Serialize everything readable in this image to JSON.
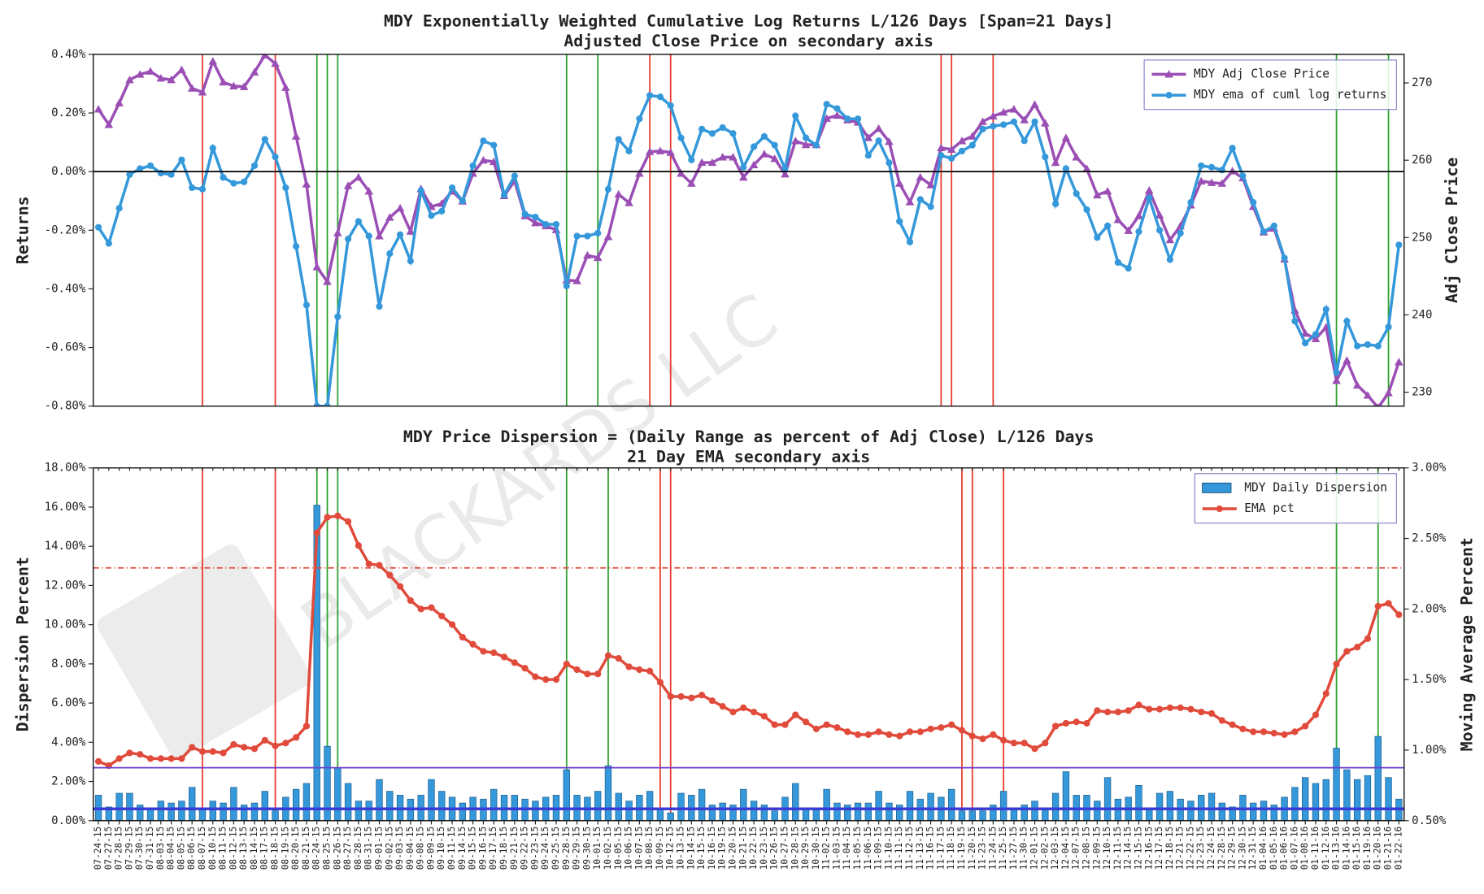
{
  "watermark": "BLACKARDS LLC",
  "chart_data": [
    {
      "type": "line",
      "title": "MDY Exponentially Weighted Cumulative Log Returns L/126 Days [Span=21 Days]",
      "subtitle": "Adjusted Close Price on secondary axis",
      "ylabel": "Returns",
      "y2label": "Adj Close Price",
      "ylim": [
        -0.8,
        0.4
      ],
      "yticks": [
        {
          "value": -0.8,
          "label": "-0.80%"
        },
        {
          "value": -0.6,
          "label": "-0.60%"
        },
        {
          "value": -0.4,
          "label": "-0.40%"
        },
        {
          "value": -0.2,
          "label": "-0.20%"
        },
        {
          "value": 0,
          "label": "0.00%"
        },
        {
          "value": 0.2,
          "label": "0.20%"
        },
        {
          "value": 0.4,
          "label": "0.40%"
        }
      ],
      "y2lim": [
        228.2,
        273.7
      ],
      "y2ticks": [
        230,
        240,
        250,
        260,
        270
      ],
      "legend": "upper right",
      "series": [
        {
          "name": "MDY Adj Close Price",
          "color": "#9b4fb5",
          "axis": "y2",
          "marker": "triangle",
          "values": [
            266.6,
            264.6,
            267.4,
            270.4,
            271.1,
            271.5,
            270.6,
            270.4,
            271.7,
            269.3,
            268.8,
            272.8,
            270.1,
            269.6,
            269.5,
            271.4,
            273.6,
            272.5,
            269.4,
            263.1,
            256.9,
            246.2,
            244.3,
            250.6,
            256.7,
            257.8,
            256.0,
            250.2,
            252.6,
            253.8,
            250.8,
            256.3,
            254.0,
            254.4,
            256.0,
            254.7,
            258.3,
            260.0,
            259.8,
            255.4,
            257.3,
            252.8,
            251.9,
            251.5,
            251.0,
            244.5,
            244.4,
            247.7,
            247.4,
            250.1,
            255.6,
            254.5,
            258.3,
            261.1,
            261.2,
            261.0,
            258.3,
            257.0,
            259.7,
            259.7,
            260.4,
            260.4,
            257.8,
            259.4,
            260.8,
            260.2,
            258.2,
            262.5,
            262.0,
            262.0,
            265.4,
            265.8,
            265.2,
            264.9,
            262.9,
            264.1,
            262.4,
            257.0,
            254.6,
            257.8,
            256.8,
            261.6,
            261.4,
            262.5,
            263.1,
            265.0,
            265.7,
            266.2,
            266.6,
            265.2,
            267.2,
            264.8,
            259.7,
            262.9,
            260.4,
            258.9,
            255.5,
            256.0,
            252.3,
            250.9,
            252.8,
            256.1,
            252.9,
            249.7,
            251.5,
            254.2,
            257.3,
            257.1,
            257.0,
            258.6,
            257.7,
            254.0,
            250.7,
            251.2,
            247.2,
            240.6,
            237.6,
            236.9,
            238.4,
            231.5,
            234.1,
            230.9,
            229.6,
            228.0,
            229.9,
            233.9
          ]
        },
        {
          "name": "MDY ema of cuml log returns",
          "color": "#3498db",
          "marker": "circle",
          "values": [
            -0.19,
            -0.245,
            -0.125,
            -0.01,
            0.01,
            0.02,
            -0.005,
            -0.01,
            0.04,
            -0.055,
            -0.06,
            0.08,
            -0.02,
            -0.04,
            -0.035,
            0.02,
            0.11,
            0.05,
            -0.055,
            -0.255,
            -0.455,
            -0.8,
            -0.8,
            -0.495,
            -0.23,
            -0.17,
            -0.22,
            -0.46,
            -0.28,
            -0.215,
            -0.305,
            -0.065,
            -0.15,
            -0.135,
            -0.055,
            -0.1,
            0.02,
            0.105,
            0.09,
            -0.08,
            -0.015,
            -0.145,
            -0.155,
            -0.18,
            -0.18,
            -0.39,
            -0.22,
            -0.22,
            -0.21,
            -0.06,
            0.11,
            0.07,
            0.18,
            0.26,
            0.255,
            0.225,
            0.115,
            0.04,
            0.145,
            0.13,
            0.15,
            0.13,
            0.015,
            0.085,
            0.12,
            0.09,
            0.01,
            0.19,
            0.115,
            0.09,
            0.23,
            0.215,
            0.18,
            0.18,
            0.055,
            0.105,
            0.03,
            -0.17,
            -0.24,
            -0.095,
            -0.12,
            0.055,
            0.045,
            0.07,
            0.09,
            0.145,
            0.155,
            0.16,
            0.17,
            0.105,
            0.17,
            0.05,
            -0.11,
            0.01,
            -0.075,
            -0.13,
            -0.225,
            -0.185,
            -0.31,
            -0.33,
            -0.205,
            -0.09,
            -0.2,
            -0.3,
            -0.21,
            -0.105,
            0.02,
            0.015,
            0.005,
            0.08,
            -0.015,
            -0.105,
            -0.205,
            -0.185,
            -0.295,
            -0.51,
            -0.585,
            -0.555,
            -0.47,
            -0.685,
            -0.51,
            -0.595,
            -0.59,
            -0.595,
            -0.53,
            -0.25
          ]
        }
      ],
      "hlines": [
        {
          "value": 0,
          "color": "#000000"
        }
      ],
      "vlines": [
        {
          "x": "08-07-15",
          "color": "#e8392b"
        },
        {
          "x": "08-18-15",
          "color": "#e8392b"
        },
        {
          "x": "10-08-15",
          "color": "#e8392b"
        },
        {
          "x": "10-12-15",
          "color": "#e8392b"
        },
        {
          "x": "11-17-15",
          "color": "#e8392b"
        },
        {
          "x": "11-18-15",
          "color": "#e8392b"
        },
        {
          "x": "11-24-15",
          "color": "#e8392b"
        },
        {
          "x": "08-24-15",
          "color": "#2ca02c"
        },
        {
          "x": "08-25-15",
          "color": "#2ca02c"
        },
        {
          "x": "08-26-15",
          "color": "#2ca02c"
        },
        {
          "x": "09-28-15",
          "color": "#2ca02c"
        },
        {
          "x": "10-01-15",
          "color": "#2ca02c"
        },
        {
          "x": "01-13-16",
          "color": "#2ca02c"
        },
        {
          "x": "01-21-16",
          "color": "#2ca02c"
        }
      ]
    },
    {
      "type": "bar",
      "title": "MDY Price Dispersion = (Daily Range as percent of Adj Close) L/126 Days",
      "subtitle": "21 Day EMA secondary axis",
      "ylabel": "Dispersion Percent",
      "y2label": "Moving Average Percent",
      "categories": [
        "07-24-15",
        "07-27-15",
        "07-28-15",
        "07-29-15",
        "07-30-15",
        "07-31-15",
        "08-03-15",
        "08-04-15",
        "08-05-15",
        "08-06-15",
        "08-07-15",
        "08-10-15",
        "08-11-15",
        "08-12-15",
        "08-13-15",
        "08-14-15",
        "08-17-15",
        "08-18-15",
        "08-19-15",
        "08-20-15",
        "08-21-15",
        "08-24-15",
        "08-25-15",
        "08-26-15",
        "08-27-15",
        "08-28-15",
        "08-31-15",
        "09-01-15",
        "09-02-15",
        "09-03-15",
        "09-04-15",
        "09-08-15",
        "09-09-15",
        "09-10-15",
        "09-11-15",
        "09-14-15",
        "09-15-15",
        "09-16-15",
        "09-17-15",
        "09-18-15",
        "09-21-15",
        "09-22-15",
        "09-23-15",
        "09-24-15",
        "09-25-15",
        "09-28-15",
        "09-29-15",
        "09-30-15",
        "10-01-15",
        "10-02-15",
        "10-05-15",
        "10-06-15",
        "10-07-15",
        "10-08-15",
        "10-09-15",
        "10-12-15",
        "10-13-15",
        "10-14-15",
        "10-15-15",
        "10-16-15",
        "10-19-15",
        "10-20-15",
        "10-21-15",
        "10-22-15",
        "10-23-15",
        "10-26-15",
        "10-27-15",
        "10-28-15",
        "10-29-15",
        "10-30-15",
        "11-02-15",
        "11-03-15",
        "11-04-15",
        "11-05-15",
        "11-06-15",
        "11-09-15",
        "11-10-15",
        "11-11-15",
        "11-12-15",
        "11-13-15",
        "11-16-15",
        "11-17-15",
        "11-18-15",
        "11-19-15",
        "11-20-15",
        "11-23-15",
        "11-24-15",
        "11-25-15",
        "11-27-15",
        "11-30-15",
        "12-01-15",
        "12-02-15",
        "12-03-15",
        "12-04-15",
        "12-07-15",
        "12-08-15",
        "12-09-15",
        "12-10-15",
        "12-11-15",
        "12-14-15",
        "12-15-15",
        "12-16-15",
        "12-17-15",
        "12-18-15",
        "12-21-15",
        "12-22-15",
        "12-23-15",
        "12-24-15",
        "12-28-15",
        "12-29-15",
        "12-30-15",
        "12-31-15",
        "01-04-16",
        "01-05-16",
        "01-06-16",
        "01-07-16",
        "01-08-16",
        "01-11-16",
        "01-12-16",
        "01-13-16",
        "01-14-16",
        "01-15-16",
        "01-19-16",
        "01-20-16",
        "01-21-16",
        "01-22-16"
      ],
      "ylim": [
        0,
        18
      ],
      "yticks": [
        {
          "value": 0,
          "label": "0.00%"
        },
        {
          "value": 2,
          "label": "2.00%"
        },
        {
          "value": 4,
          "label": "4.00%"
        },
        {
          "value": 6,
          "label": "6.00%"
        },
        {
          "value": 8,
          "label": "8.00%"
        },
        {
          "value": 10,
          "label": "10.00%"
        },
        {
          "value": 12,
          "label": "12.00%"
        },
        {
          "value": 14,
          "label": "14.00%"
        },
        {
          "value": 16,
          "label": "16.00%"
        },
        {
          "value": 18,
          "label": "18.00%"
        }
      ],
      "y2lim": [
        0.5,
        3.0
      ],
      "y2ticks": [
        {
          "value": 0.5,
          "label": "0.50%"
        },
        {
          "value": 1.0,
          "label": "1.00%"
        },
        {
          "value": 1.5,
          "label": "1.50%"
        },
        {
          "value": 2.0,
          "label": "2.00%"
        },
        {
          "value": 2.5,
          "label": "2.50%"
        },
        {
          "value": 3.0,
          "label": "3.00%"
        }
      ],
      "legend": "upper right",
      "series": [
        {
          "name": "MDY Daily Dispersion",
          "color": "#3498db",
          "type": "bar",
          "values": [
            1.3,
            0.7,
            1.4,
            1.4,
            0.8,
            0.6,
            1.0,
            0.9,
            1.0,
            1.7,
            0.6,
            1.0,
            0.9,
            1.7,
            0.8,
            0.9,
            1.5,
            0.5,
            1.2,
            1.6,
            1.9,
            16.1,
            3.8,
            2.7,
            1.9,
            1.0,
            1.0,
            2.1,
            1.5,
            1.3,
            1.1,
            1.3,
            2.1,
            1.5,
            1.2,
            0.9,
            1.2,
            1.1,
            1.6,
            1.3,
            1.3,
            1.1,
            1.0,
            1.2,
            1.3,
            2.6,
            1.3,
            1.2,
            1.5,
            2.8,
            1.4,
            1.0,
            1.3,
            1.5,
            0.6,
            0.4,
            1.4,
            1.3,
            1.6,
            0.8,
            0.9,
            0.8,
            1.6,
            1.0,
            0.8,
            0.5,
            1.2,
            1.9,
            0.6,
            0.6,
            1.6,
            0.9,
            0.8,
            0.9,
            0.9,
            1.5,
            0.9,
            0.8,
            1.5,
            1.1,
            1.4,
            1.2,
            1.6,
            0.5,
            0.5,
            0.5,
            0.8,
            1.5,
            0.6,
            0.8,
            1.0,
            0.6,
            1.4,
            2.5,
            1.3,
            1.3,
            1.0,
            2.2,
            1.1,
            1.2,
            1.8,
            0.6,
            1.4,
            1.5,
            1.1,
            1.0,
            1.3,
            1.4,
            0.9,
            0.7,
            1.3,
            0.9,
            1.0,
            0.8,
            1.2,
            1.7,
            2.2,
            1.9,
            2.1,
            3.7,
            2.6,
            2.1,
            2.3,
            4.3,
            2.2,
            1.1
          ]
        },
        {
          "name": "EMA pct",
          "color": "#e04b3c",
          "type": "line",
          "axis": "y2",
          "marker": "circle",
          "values": [
            0.92,
            0.89,
            0.94,
            0.98,
            0.97,
            0.94,
            0.94,
            0.94,
            0.94,
            1.02,
            0.99,
            0.99,
            0.98,
            1.04,
            1.02,
            1.01,
            1.07,
            1.03,
            1.05,
            1.09,
            1.17,
            2.54,
            2.65,
            2.66,
            2.62,
            2.45,
            2.32,
            2.31,
            2.24,
            2.16,
            2.06,
            2.0,
            2.01,
            1.95,
            1.89,
            1.8,
            1.75,
            1.7,
            1.69,
            1.66,
            1.62,
            1.58,
            1.52,
            1.5,
            1.5,
            1.61,
            1.57,
            1.54,
            1.54,
            1.67,
            1.65,
            1.59,
            1.57,
            1.56,
            1.48,
            1.38,
            1.38,
            1.37,
            1.39,
            1.35,
            1.31,
            1.27,
            1.3,
            1.27,
            1.24,
            1.18,
            1.18,
            1.25,
            1.2,
            1.15,
            1.18,
            1.16,
            1.13,
            1.11,
            1.11,
            1.13,
            1.11,
            1.1,
            1.13,
            1.13,
            1.15,
            1.16,
            1.18,
            1.14,
            1.1,
            1.08,
            1.11,
            1.07,
            1.05,
            1.05,
            1.01,
            1.05,
            1.17,
            1.19,
            1.2,
            1.19,
            1.28,
            1.27,
            1.27,
            1.28,
            1.32,
            1.29,
            1.29,
            1.3,
            1.3,
            1.29,
            1.27,
            1.26,
            1.21,
            1.18,
            1.15,
            1.13,
            1.13,
            1.12,
            1.11,
            1.13,
            1.17,
            1.25,
            1.4,
            1.61,
            1.7,
            1.73,
            1.79,
            2.02,
            2.04,
            1.96
          ]
        }
      ],
      "hlines": [
        {
          "value": 12.9,
          "color": "#e04b3c",
          "style": "dashdot"
        },
        {
          "value": 2.7,
          "color": "#6a3ccf"
        },
        {
          "value": 0.6,
          "color": "#3b3bd6",
          "width": 3
        }
      ],
      "vlines": [
        {
          "x": "08-07-15",
          "color": "#e8392b"
        },
        {
          "x": "08-18-15",
          "color": "#e8392b"
        },
        {
          "x": "10-09-15",
          "color": "#e8392b"
        },
        {
          "x": "10-12-15",
          "color": "#e8392b"
        },
        {
          "x": "11-19-15",
          "color": "#e8392b"
        },
        {
          "x": "11-20-15",
          "color": "#e8392b"
        },
        {
          "x": "11-25-15",
          "color": "#e8392b"
        },
        {
          "x": "08-24-15",
          "color": "#2ca02c"
        },
        {
          "x": "08-25-15",
          "color": "#2ca02c"
        },
        {
          "x": "08-26-15",
          "color": "#2ca02c"
        },
        {
          "x": "09-28-15",
          "color": "#2ca02c"
        },
        {
          "x": "10-02-15",
          "color": "#2ca02c"
        },
        {
          "x": "01-13-16",
          "color": "#2ca02c"
        },
        {
          "x": "01-20-16",
          "color": "#2ca02c"
        }
      ]
    }
  ]
}
